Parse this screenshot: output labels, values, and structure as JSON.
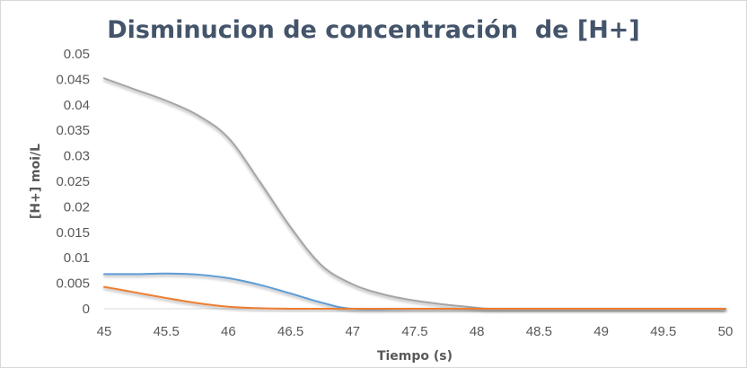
{
  "chart_data": {
    "type": "line",
    "title": "Disminucion de concentración  de [H+]",
    "xlabel": "Tiempo  (s)",
    "ylabel": "[H+] moi/L",
    "xlim": [
      45,
      50
    ],
    "ylim": [
      0,
      0.05
    ],
    "x_ticks": [
      "45",
      "45.5",
      "46",
      "46.5",
      "47",
      "47.5",
      "48",
      "48.5",
      "49",
      "49.5",
      "50"
    ],
    "y_ticks": [
      "0.05",
      "0.045",
      "0.04",
      "0.035",
      "0.03",
      "0.025",
      "0.02",
      "0.015",
      "0.01",
      "0.005",
      "0"
    ],
    "grid": false,
    "legend": "none",
    "series": [
      {
        "color": "#a5a5a5",
        "x": [
          45,
          45.25,
          45.5,
          45.75,
          46,
          46.25,
          46.5,
          46.75,
          47,
          47.25,
          47.5,
          47.75,
          48,
          48.1,
          48.5,
          49,
          49.5,
          50
        ],
        "y": [
          0.0452,
          0.043,
          0.0408,
          0.038,
          0.0335,
          0.025,
          0.016,
          0.0085,
          0.0048,
          0.0028,
          0.0016,
          0.0008,
          0.0002,
          0,
          0,
          0,
          0,
          0
        ]
      },
      {
        "color": "#5b9bd5",
        "x": [
          45,
          45.25,
          45.5,
          45.75,
          46,
          46.25,
          46.5,
          46.75,
          47,
          47.5,
          48,
          48.5,
          49,
          49.5,
          50
        ],
        "y": [
          0.0068,
          0.0068,
          0.0069,
          0.0067,
          0.006,
          0.0047,
          0.003,
          0.0012,
          0,
          0,
          0,
          0,
          0,
          0,
          0
        ]
      },
      {
        "color": "#ed7d31",
        "x": [
          45,
          45.25,
          45.5,
          45.75,
          46,
          46.25,
          46.5,
          47,
          47.5,
          48,
          48.5,
          49,
          49.5,
          50
        ],
        "y": [
          0.0043,
          0.0032,
          0.0021,
          0.0011,
          0.0004,
          0.0001,
          0,
          0,
          0,
          0,
          0,
          0,
          0,
          0
        ]
      }
    ]
  },
  "colors": {
    "axis": "#d9d9d9",
    "text": "#595959",
    "title": "#44546a"
  }
}
